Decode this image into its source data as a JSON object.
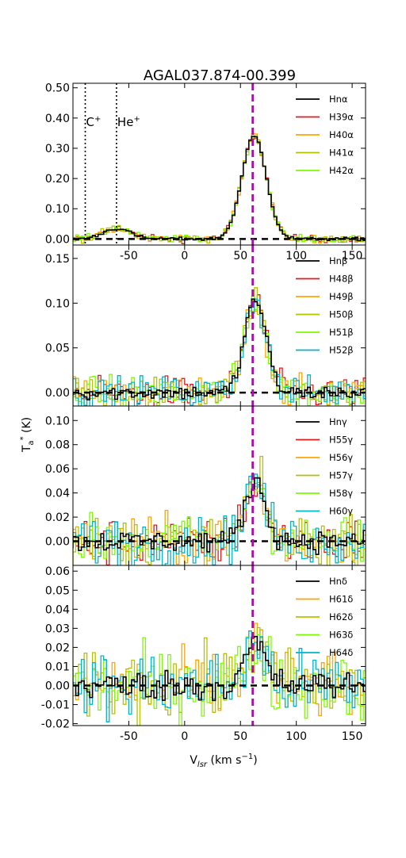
{
  "figure": {
    "title": "AGAL037.874-00.399",
    "xlabel_main": "V",
    "xlabel_sub": "lsr",
    "xlabel_rest": " (km s",
    "xlabel_exp": "−1",
    "xlabel_close": ")",
    "ylabel_main": "T",
    "ylabel_sub": "a",
    "ylabel_sup": "*",
    "ylabel_rest": " (K)"
  },
  "colors": {
    "black": "#000000",
    "red": "#e41a1c",
    "orange": "#ffa500",
    "olive": "#b5c200",
    "lime": "#7cfc00",
    "cyan": "#00b5c8",
    "vline": "#c000c0"
  },
  "chart_data": [
    {
      "type": "line",
      "panel": "alpha",
      "xlim": [
        -100,
        162
      ],
      "ylim": [
        -0.02,
        0.515
      ],
      "yticks": [
        0.0,
        0.1,
        0.2,
        0.3,
        0.4,
        0.5
      ],
      "ytick_labels": [
        "0.00",
        "0.10",
        "0.20",
        "0.30",
        "0.40",
        "0.50"
      ],
      "xticks": [
        -50,
        0,
        50,
        100,
        150
      ],
      "xtick_labels": [
        "-50",
        "0",
        "50",
        "100",
        "150"
      ],
      "baseline": 0,
      "vline_x": 61,
      "noise": 0.006,
      "components": [
        {
          "center": 61,
          "amp": 0.34,
          "sigma": 11
        },
        {
          "center": -62,
          "amp": 0.035,
          "sigma": 12
        }
      ],
      "markers": [
        {
          "x": -89,
          "label": "C",
          "sup": "+"
        },
        {
          "x": -61,
          "label": "He",
          "sup": "+"
        }
      ],
      "legend": "upper-right",
      "series": [
        {
          "name": "Hnα",
          "color": "black"
        },
        {
          "name": "H39α",
          "color": "red"
        },
        {
          "name": "H40α",
          "color": "orange"
        },
        {
          "name": "H41α",
          "color": "olive"
        },
        {
          "name": "H42α",
          "color": "lime"
        }
      ]
    },
    {
      "type": "line",
      "panel": "beta",
      "xlim": [
        -100,
        162
      ],
      "ylim": [
        -0.015,
        0.165
      ],
      "yticks": [
        0.0,
        0.05,
        0.1,
        0.15
      ],
      "ytick_labels": [
        "0.00",
        "0.05",
        "0.10",
        "0.15"
      ],
      "xticks": [
        -50,
        0,
        50,
        100,
        150
      ],
      "xtick_labels": [
        "",
        "",
        "",
        "",
        ""
      ],
      "baseline": 0,
      "vline_x": 61,
      "noise": 0.009,
      "components": [
        {
          "center": 62,
          "amp": 0.105,
          "sigma": 9.5
        }
      ],
      "markers": [],
      "legend": "upper-right",
      "series": [
        {
          "name": "Hnβ",
          "color": "black"
        },
        {
          "name": "H48β",
          "color": "red"
        },
        {
          "name": "H49β",
          "color": "orange"
        },
        {
          "name": "H50β",
          "color": "olive"
        },
        {
          "name": "H51β",
          "color": "lime"
        },
        {
          "name": "H52β",
          "color": "cyan"
        }
      ]
    },
    {
      "type": "line",
      "panel": "gamma",
      "xlim": [
        -100,
        162
      ],
      "ylim": [
        -0.02,
        0.112
      ],
      "yticks": [
        0.0,
        0.02,
        0.04,
        0.06,
        0.08,
        0.1
      ],
      "ytick_labels": [
        "0.00",
        "0.02",
        "0.04",
        "0.06",
        "0.08",
        "0.10"
      ],
      "xticks": [
        -50,
        0,
        50,
        100,
        150
      ],
      "xtick_labels": [
        "",
        "",
        "",
        "",
        ""
      ],
      "baseline": 0,
      "vline_x": 61,
      "noise": 0.01,
      "components": [
        {
          "center": 62,
          "amp": 0.05,
          "sigma": 9
        }
      ],
      "markers": [],
      "legend": "upper-right",
      "series": [
        {
          "name": "Hnγ",
          "color": "black"
        },
        {
          "name": "H55γ",
          "color": "red"
        },
        {
          "name": "H56γ",
          "color": "orange"
        },
        {
          "name": "H57γ",
          "color": "olive"
        },
        {
          "name": "H58γ",
          "color": "lime"
        },
        {
          "name": "H60γ",
          "color": "cyan"
        }
      ]
    },
    {
      "type": "line",
      "panel": "delta",
      "xlim": [
        -100,
        162
      ],
      "ylim": [
        -0.021,
        0.063
      ],
      "yticks": [
        -0.02,
        -0.01,
        0.0,
        0.01,
        0.02,
        0.03,
        0.04,
        0.05,
        0.06
      ],
      "ytick_labels": [
        "-0.02",
        "-0.01",
        "0.00",
        "0.01",
        "0.02",
        "0.03",
        "0.04",
        "0.05",
        "0.06"
      ],
      "xticks": [
        -50,
        0,
        50,
        100,
        150
      ],
      "xtick_labels": [
        "-50",
        "0",
        "50",
        "100",
        "150"
      ],
      "baseline": 0,
      "vline_x": 61,
      "noise": 0.009,
      "components": [
        {
          "center": 62,
          "amp": 0.022,
          "sigma": 9
        }
      ],
      "markers": [],
      "legend": "upper-right",
      "series": [
        {
          "name": "Hnδ",
          "color": "black"
        },
        {
          "name": "H61δ",
          "color": "orange"
        },
        {
          "name": "H62δ",
          "color": "olive"
        },
        {
          "name": "H63δ",
          "color": "lime"
        },
        {
          "name": "H64δ",
          "color": "cyan"
        }
      ]
    }
  ]
}
